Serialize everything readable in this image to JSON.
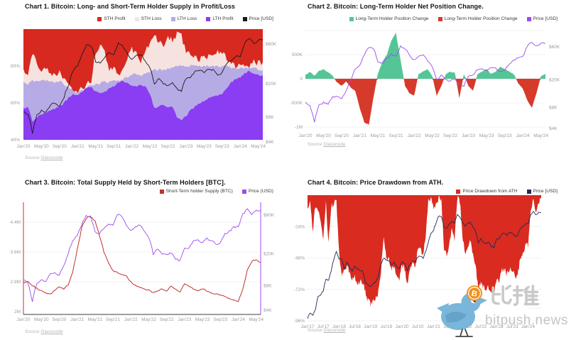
{
  "page": {
    "background": "#ffffff"
  },
  "watermark": {
    "cjk_text": "比推",
    "site_text": "bitpush.news",
    "bird_color": "#7ab5da",
    "wing_color": "#66a3cb",
    "coin_color": "#f0921e",
    "coin_symbol": "B",
    "text_color": "#c4c4c4"
  },
  "chart_data": [
    {
      "type": "area",
      "stacked_percent": true,
      "title": "Chart 1. Bitcoin: Long- and Short-Term Holder Supply in Profit/Loss",
      "source_prefix": "Source",
      "source_link": "Glassnode",
      "x_interval": "monthly",
      "x_start": "Jan'20",
      "x_end": "Jun'24",
      "x_tick_every": 4,
      "x_tick_labels": [
        "Jan'20",
        "May'20",
        "Sep'20",
        "Jan'21",
        "May'21",
        "Sep'21",
        "Jan'22",
        "May'22",
        "Sep'22",
        "Jan'23",
        "May'23",
        "Sep'23",
        "Jan'24",
        "May'24"
      ],
      "y_left": {
        "ticks": [
          "80%",
          "60%",
          "40%"
        ],
        "values": [
          80,
          60,
          40
        ],
        "range": [
          40,
          100
        ],
        "unit": "% of supply"
      },
      "y_right": {
        "ticks": [
          "$60K",
          "$20K",
          "$8K",
          "$4K"
        ],
        "values": [
          60,
          20,
          8,
          4
        ],
        "scale": "log",
        "unit": "USD thousands"
      },
      "legend": [
        {
          "label": "STH Profit",
          "color": "#d7291f"
        },
        {
          "label": "STH Loss",
          "color": "#f6e3df"
        },
        {
          "label": "LTH Loss",
          "color": "#b7abe6"
        },
        {
          "label": "LTH Profit",
          "color": "#8a3df2"
        },
        {
          "label": "Price [USD]",
          "color": "#1a1a1a"
        }
      ],
      "series": [
        {
          "name": "LTH Profit",
          "unit": "%",
          "values": [
            57,
            58,
            50,
            52,
            54,
            55,
            56,
            57,
            58,
            60,
            63,
            65,
            64,
            66,
            68,
            69,
            66,
            65,
            66,
            68,
            69,
            71,
            72,
            71,
            69,
            69,
            70,
            69,
            65,
            57,
            58,
            59,
            58,
            58,
            52,
            51,
            53,
            56,
            58,
            60,
            61,
            63,
            64,
            64,
            65,
            68,
            71,
            73,
            74,
            76,
            77,
            76,
            75,
            75
          ]
        },
        {
          "name": "LTH Loss",
          "unit": "%",
          "values": [
            14,
            12,
            22,
            20,
            18,
            17,
            16,
            14,
            14,
            10,
            5,
            2,
            1,
            0.5,
            0.5,
            0.5,
            4,
            6,
            6,
            3,
            3,
            1,
            1,
            3,
            6,
            7,
            5,
            7,
            12,
            21,
            20,
            19,
            21,
            21,
            28,
            29,
            27,
            24,
            22,
            20,
            19,
            17,
            16,
            16,
            15,
            12,
            8,
            6,
            5,
            3,
            2,
            3,
            3,
            3
          ]
        },
        {
          "name": "STH Loss",
          "unit": "%",
          "values": [
            6,
            4,
            16,
            10,
            6,
            6,
            4,
            3,
            6,
            3,
            1,
            0.5,
            1,
            1.5,
            2,
            3,
            18,
            20,
            16,
            6,
            8,
            2,
            4,
            10,
            14,
            12,
            6,
            12,
            16,
            19,
            15,
            13,
            16,
            15,
            17,
            16,
            8,
            6,
            5,
            4,
            6,
            5,
            5,
            8,
            8,
            4,
            2,
            1,
            3,
            1,
            1,
            3,
            4,
            4
          ]
        },
        {
          "name": "STH Profit",
          "unit": "%",
          "values": [
            23,
            26,
            12,
            18,
            22,
            22,
            24,
            26,
            22,
            27,
            31,
            32.5,
            34,
            32,
            29.5,
            27.5,
            12,
            9,
            12,
            23,
            20,
            26,
            23,
            16,
            11,
            12,
            19,
            12,
            7,
            3,
            7,
            9,
            5,
            6,
            3,
            4,
            12,
            14,
            15,
            16,
            14,
            15,
            15,
            12,
            12,
            16,
            19,
            20,
            18,
            20,
            20,
            18,
            18,
            18
          ]
        },
        {
          "name": "Price [USD]",
          "unit": "K USD",
          "values": [
            9.4,
            8.6,
            5.0,
            8.6,
            9.5,
            9.1,
            11.3,
            11.7,
            10.8,
            13.8,
            19.7,
            29,
            33,
            45,
            59,
            57.7,
            37,
            35,
            41.5,
            47,
            43.8,
            61,
            57,
            46,
            38.5,
            43,
            45.5,
            37.6,
            31.8,
            19.9,
            23.3,
            20,
            19.4,
            20.5,
            17.2,
            16.5,
            23.1,
            23.5,
            28.5,
            29.2,
            27.2,
            30.5,
            29.2,
            26,
            27,
            34.7,
            37.7,
            42.3,
            42.6,
            61.2,
            71.3,
            60.6,
            67.5,
            67
          ]
        }
      ]
    },
    {
      "type": "area",
      "title": "Chart 2. Bitcoin: Long-Term Holder Net Position Change.",
      "source_prefix": "Source",
      "source_link": "Glassnode",
      "x_interval": "monthly",
      "x_start": "Jan'20",
      "x_end": "Jun'24",
      "x_tick_every": 4,
      "x_tick_labels": [
        "Jan'20",
        "May'20",
        "Sep'20",
        "Jan'21",
        "May'21",
        "Sep'21",
        "Jan'22",
        "May'22",
        "Sep'22",
        "Jan'23",
        "May'23",
        "Sep'23",
        "Jan'24",
        "May'24"
      ],
      "y_left": {
        "ticks": [
          "500K",
          "0",
          "-500K",
          "-1M"
        ],
        "values": [
          500,
          0,
          -500,
          -1000
        ],
        "unit": "BTC thousands"
      },
      "y_right": {
        "ticks": [
          "$60K",
          "$20K",
          "$8K",
          "$4K"
        ],
        "values": [
          60,
          20,
          8,
          4
        ],
        "scale": "log",
        "unit": "USD thousands"
      },
      "legend": [
        {
          "label": "Long-Term Holder Position Change",
          "color": "#55c596"
        },
        {
          "label": "Long-Term Holder Position Change",
          "color": "#d63a2a"
        },
        {
          "label": "Price [USD]",
          "color": "#9b4bf0"
        }
      ],
      "series": [
        {
          "name": "Long-Term Holder Position Change",
          "unit": "K BTC",
          "values": [
            80,
            140,
            60,
            160,
            200,
            140,
            60,
            -80,
            -140,
            -60,
            -180,
            -250,
            -600,
            -900,
            -950,
            -400,
            100,
            350,
            500,
            800,
            950,
            400,
            -150,
            -300,
            -350,
            100,
            150,
            200,
            50,
            -350,
            -150,
            100,
            150,
            120,
            -400,
            100,
            -150,
            -250,
            100,
            150,
            200,
            100,
            150,
            250,
            200,
            150,
            100,
            -100,
            -200,
            -450,
            -600,
            -300,
            50,
            100
          ]
        },
        {
          "name": "Price [USD]",
          "unit": "K USD",
          "values": [
            9.4,
            8.6,
            5.0,
            8.6,
            9.5,
            9.1,
            11.3,
            11.7,
            10.8,
            13.8,
            19.7,
            29,
            33,
            45,
            59,
            57.7,
            37,
            35,
            41.5,
            47,
            43.8,
            61,
            57,
            46,
            38.5,
            43,
            45.5,
            37.6,
            31.8,
            19.9,
            23.3,
            20,
            19.4,
            20.5,
            17.2,
            16.5,
            23.1,
            23.5,
            28.5,
            29.2,
            27.2,
            30.5,
            29.2,
            26,
            27,
            34.7,
            37.7,
            42.3,
            42.6,
            61.2,
            71.3,
            60.6,
            67.5,
            67
          ]
        }
      ]
    },
    {
      "type": "line",
      "title": "Chart 3. Bitcoin: Total Supply Held by Short-Term Holders [BTC].",
      "source_prefix": "Source",
      "source_link": "Glassnode",
      "x_interval": "monthly",
      "x_start": "Jan'20",
      "x_end": "Jun'24",
      "x_tick_every": 4,
      "x_tick_labels": [
        "Jan'20",
        "May'20",
        "Sep'20",
        "Jan'21",
        "May'21",
        "Sep'21",
        "Jan'22",
        "May'22",
        "Sep'22",
        "Jan'23",
        "May'23",
        "Sep'23",
        "Jan'24",
        "May'24"
      ],
      "y_left": {
        "ticks": [
          "4.4M",
          "3.6M",
          "2.8M",
          "2M"
        ],
        "values": [
          4.4,
          3.6,
          2.8,
          2
        ],
        "unit": "M BTC"
      },
      "y_right": {
        "ticks": [
          "$60K",
          "$20K",
          "$8K",
          "$4K"
        ],
        "values": [
          60,
          20,
          8,
          4
        ],
        "scale": "log",
        "unit": "USD thousands"
      },
      "legend": [
        {
          "label": "Short-Term holder Supply (BTC)",
          "color": "#c0332a"
        },
        {
          "label": "Price (USD)",
          "color": "#9b4bf0"
        }
      ],
      "series": [
        {
          "name": "Short-Term holder Supply (BTC)",
          "unit": "M BTC",
          "values": [
            2.78,
            2.82,
            2.7,
            2.62,
            2.56,
            2.5,
            2.46,
            2.58,
            2.66,
            2.6,
            2.72,
            3.05,
            3.65,
            4.25,
            4.5,
            4.55,
            4.42,
            4.05,
            3.6,
            3.3,
            3.1,
            3.05,
            3.0,
            2.95,
            2.8,
            2.7,
            2.65,
            2.6,
            2.58,
            2.5,
            2.55,
            2.62,
            2.55,
            2.7,
            2.6,
            2.52,
            2.75,
            2.68,
            2.6,
            2.55,
            2.62,
            2.55,
            2.5,
            2.48,
            2.45,
            2.4,
            2.35,
            2.3,
            2.28,
            2.6,
            3.1,
            3.35,
            3.4,
            3.32
          ]
        },
        {
          "name": "Price (USD)",
          "unit": "K USD",
          "values": [
            9.4,
            8.6,
            5.0,
            8.6,
            9.5,
            9.1,
            11.3,
            11.7,
            10.8,
            13.8,
            19.7,
            29,
            33,
            45,
            59,
            57.7,
            37,
            35,
            41.5,
            47,
            43.8,
            61,
            57,
            46,
            38.5,
            43,
            45.5,
            37.6,
            31.8,
            19.9,
            23.3,
            20,
            19.4,
            20.5,
            17.2,
            16.5,
            23.1,
            23.5,
            28.5,
            29.2,
            27.2,
            30.5,
            29.2,
            26,
            27,
            34.7,
            37.7,
            42.3,
            42.6,
            61.2,
            71.3,
            60.6,
            67.5,
            67
          ]
        }
      ]
    },
    {
      "type": "area",
      "title": "Chart 4. Bitcoin: Price Drawdown from ATH.",
      "source_prefix": "Source",
      "source_link": "Glassnode",
      "x_interval": "monthly",
      "x_start": "Jan'17",
      "x_end": "Jun'24",
      "x_tick_every": 6,
      "x_tick_labels": [
        "Jan'17",
        "Jul'17",
        "Jan'18",
        "Jul'18",
        "Jan'19",
        "Jul'19",
        "Jan'20",
        "Jul'20",
        "Jan'21",
        "Jul'21",
        "Jan'22",
        "Jul'22",
        "Jan'23",
        "Jul'23",
        "Jan'24"
      ],
      "y_left": {
        "ticks": [
          "-24%",
          "-48%",
          "-72%",
          "-96%"
        ],
        "values": [
          -24,
          -48,
          -72,
          -96
        ],
        "range": [
          -96,
          0
        ],
        "unit": "%"
      },
      "legend": [
        {
          "label": "Price Drawdown from ATH",
          "color": "#d92b20"
        },
        {
          "label": "Price [USD]",
          "color": "#202a55"
        }
      ],
      "series": [
        {
          "name": "Price Drawdown from ATH",
          "unit": "%",
          "values": [
            -8,
            -6,
            -28,
            -8,
            -10,
            -22,
            -32,
            -6,
            -36,
            -8,
            -6,
            -4,
            -44,
            -62,
            -58,
            -55,
            -58,
            -66,
            -62,
            -68,
            -66,
            -67,
            -74,
            -81,
            -83,
            -81,
            -79,
            -73,
            -57,
            -33,
            -47,
            -49,
            -58,
            -53,
            -62,
            -64,
            -53,
            -56,
            -67,
            -57,
            -52,
            -54,
            -43,
            -40,
            -46,
            -31,
            -4,
            -1,
            -11,
            -6,
            -1,
            -4,
            -42,
            -46,
            -36,
            -27,
            -33,
            -2,
            -4,
            -30,
            -44,
            -38,
            -34,
            -45,
            -54,
            -71,
            -66,
            -71,
            -72,
            -70,
            -75,
            -76,
            -66,
            -65,
            -58,
            -57,
            -61,
            -55,
            -57,
            -62,
            -61,
            -49,
            -44,
            -38,
            -38,
            -10,
            -4,
            -12,
            -5,
            -3
          ]
        },
        {
          "name": "Price [USD]",
          "unit": "K USD",
          "values": [
            0.97,
            1.18,
            1.08,
            1.35,
            2.3,
            2.48,
            2.87,
            4.7,
            4.34,
            6.45,
            10,
            14,
            10.2,
            10.3,
            6.9,
            9.2,
            7.5,
            6.4,
            7.7,
            7,
            6.6,
            6.3,
            4,
            3.7,
            3.4,
            3.9,
            4.1,
            5.3,
            8.5,
            10.8,
            10,
            9.6,
            8.3,
            9.2,
            7.5,
            7.2,
            9.4,
            8.6,
            6.4,
            8.6,
            9.5,
            9.1,
            11.3,
            11.7,
            10.8,
            13.8,
            19.7,
            29,
            33,
            45,
            59,
            57.7,
            37,
            35,
            41.5,
            47,
            43.8,
            61,
            57,
            46,
            38.5,
            43,
            45.5,
            37.6,
            31.8,
            19.9,
            23.3,
            20,
            19.4,
            20.5,
            17.2,
            16.5,
            23.1,
            23.5,
            28.5,
            29.2,
            27.2,
            30.5,
            29.2,
            26,
            27,
            34.7,
            37.7,
            42.3,
            42.6,
            61.2,
            71.3,
            60.6,
            67.5,
            67
          ]
        }
      ]
    }
  ]
}
